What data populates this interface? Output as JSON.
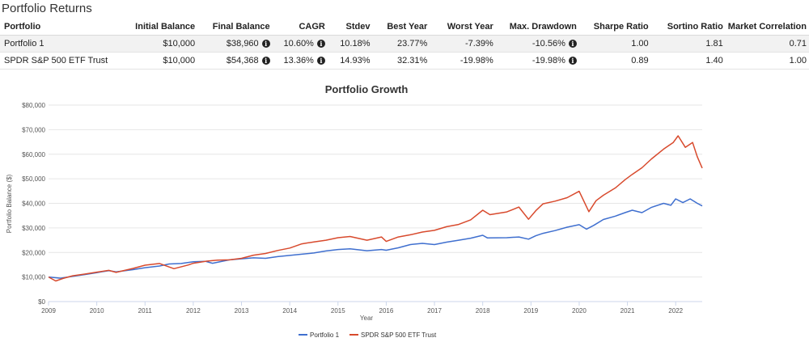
{
  "page": {
    "title": "Portfolio Returns"
  },
  "table": {
    "headers": [
      "Portfolio",
      "Initial Balance",
      "Final Balance",
      "CAGR",
      "Stdev",
      "Best Year",
      "Worst Year",
      "Max. Drawdown",
      "Sharpe Ratio",
      "Sortino Ratio",
      "Market Correlation"
    ],
    "rows": [
      {
        "portfolio": "Portfolio 1",
        "initial": "$10,000",
        "final": "$38,960",
        "cagr": "10.60%",
        "stdev": "10.18%",
        "best": "23.77%",
        "worst": "-7.39%",
        "drawdown": "-10.56%",
        "sharpe": "1.00",
        "sortino": "1.81",
        "correlation": "0.71"
      },
      {
        "portfolio": "SPDR S&P 500 ETF Trust",
        "initial": "$10,000",
        "final": "$54,368",
        "cagr": "13.36%",
        "stdev": "14.93%",
        "best": "32.31%",
        "worst": "-19.98%",
        "drawdown": "-19.98%",
        "sharpe": "0.89",
        "sortino": "1.40",
        "correlation": "1.00"
      }
    ],
    "info_icon": "info-icon"
  },
  "chart_data": {
    "type": "line",
    "title": "Portfolio Growth",
    "xlabel": "Year",
    "ylabel": "Portfolio Balance ($)",
    "xlim": [
      2009.0,
      2022.55
    ],
    "ylim": [
      0,
      80000
    ],
    "x_ticks": [
      "2009",
      "2010",
      "2011",
      "2012",
      "2013",
      "2014",
      "2015",
      "2016",
      "2017",
      "2018",
      "2019",
      "2020",
      "2021",
      "2022"
    ],
    "y_ticks": [
      "$0",
      "$10,000",
      "$20,000",
      "$30,000",
      "$40,000",
      "$50,000",
      "$60,000",
      "$70,000",
      "$80,000"
    ],
    "grid": true,
    "legend": "bottom",
    "series": [
      {
        "name": "Portfolio 1",
        "color": "#3f6fcf",
        "points": [
          [
            2009.0,
            10000
          ],
          [
            2009.25,
            9500
          ],
          [
            2009.5,
            10300
          ],
          [
            2009.75,
            11000
          ],
          [
            2010.0,
            11800
          ],
          [
            2010.25,
            12600
          ],
          [
            2010.4,
            12100
          ],
          [
            2010.75,
            13000
          ],
          [
            2011.0,
            13800
          ],
          [
            2011.3,
            14500
          ],
          [
            2011.5,
            15300
          ],
          [
            2011.75,
            15500
          ],
          [
            2012.0,
            16200
          ],
          [
            2012.25,
            16400
          ],
          [
            2012.4,
            15600
          ],
          [
            2012.75,
            17000
          ],
          [
            2013.0,
            17400
          ],
          [
            2013.25,
            17800
          ],
          [
            2013.5,
            17600
          ],
          [
            2013.75,
            18300
          ],
          [
            2014.0,
            18800
          ],
          [
            2014.25,
            19300
          ],
          [
            2014.5,
            19800
          ],
          [
            2014.75,
            20600
          ],
          [
            2015.0,
            21200
          ],
          [
            2015.25,
            21500
          ],
          [
            2015.6,
            20700
          ],
          [
            2015.9,
            21200
          ],
          [
            2016.0,
            20900
          ],
          [
            2016.25,
            21900
          ],
          [
            2016.5,
            23200
          ],
          [
            2016.75,
            23700
          ],
          [
            2017.0,
            23200
          ],
          [
            2017.25,
            24200
          ],
          [
            2017.5,
            25000
          ],
          [
            2017.75,
            25800
          ],
          [
            2018.0,
            27000
          ],
          [
            2018.1,
            25900
          ],
          [
            2018.5,
            26000
          ],
          [
            2018.75,
            26300
          ],
          [
            2018.95,
            25400
          ],
          [
            2019.1,
            26800
          ],
          [
            2019.25,
            27800
          ],
          [
            2019.5,
            28900
          ],
          [
            2019.75,
            30300
          ],
          [
            2020.0,
            31300
          ],
          [
            2020.15,
            29500
          ],
          [
            2020.3,
            31000
          ],
          [
            2020.5,
            33400
          ],
          [
            2020.75,
            34800
          ],
          [
            2020.95,
            36200
          ],
          [
            2021.1,
            37200
          ],
          [
            2021.3,
            36200
          ],
          [
            2021.5,
            38400
          ],
          [
            2021.75,
            40000
          ],
          [
            2021.9,
            39200
          ],
          [
            2022.0,
            41800
          ],
          [
            2022.15,
            40300
          ],
          [
            2022.3,
            41800
          ],
          [
            2022.45,
            40000
          ],
          [
            2022.55,
            38960
          ]
        ]
      },
      {
        "name": "SPDR S&P 500 ETF Trust",
        "color": "#d84a2d",
        "points": [
          [
            2009.0,
            10000
          ],
          [
            2009.15,
            8400
          ],
          [
            2009.3,
            9400
          ],
          [
            2009.5,
            10500
          ],
          [
            2009.75,
            11200
          ],
          [
            2010.0,
            12000
          ],
          [
            2010.25,
            12700
          ],
          [
            2010.4,
            11900
          ],
          [
            2010.75,
            13500
          ],
          [
            2011.0,
            14800
          ],
          [
            2011.3,
            15500
          ],
          [
            2011.6,
            13400
          ],
          [
            2011.9,
            14900
          ],
          [
            2012.0,
            15600
          ],
          [
            2012.25,
            16400
          ],
          [
            2012.5,
            16900
          ],
          [
            2012.75,
            17000
          ],
          [
            2013.0,
            17600
          ],
          [
            2013.25,
            18900
          ],
          [
            2013.5,
            19600
          ],
          [
            2013.75,
            20800
          ],
          [
            2014.0,
            21800
          ],
          [
            2014.25,
            23500
          ],
          [
            2014.5,
            24300
          ],
          [
            2014.75,
            25000
          ],
          [
            2015.0,
            26000
          ],
          [
            2015.25,
            26500
          ],
          [
            2015.6,
            25000
          ],
          [
            2015.9,
            26300
          ],
          [
            2016.0,
            24500
          ],
          [
            2016.25,
            26300
          ],
          [
            2016.5,
            27200
          ],
          [
            2016.75,
            28300
          ],
          [
            2017.0,
            29000
          ],
          [
            2017.25,
            30500
          ],
          [
            2017.5,
            31400
          ],
          [
            2017.75,
            33300
          ],
          [
            2018.0,
            37200
          ],
          [
            2018.15,
            35400
          ],
          [
            2018.5,
            36500
          ],
          [
            2018.75,
            38500
          ],
          [
            2018.95,
            33500
          ],
          [
            2019.1,
            37000
          ],
          [
            2019.25,
            39800
          ],
          [
            2019.5,
            40900
          ],
          [
            2019.75,
            42300
          ],
          [
            2020.0,
            44900
          ],
          [
            2020.2,
            36600
          ],
          [
            2020.35,
            41100
          ],
          [
            2020.5,
            43300
          ],
          [
            2020.75,
            46300
          ],
          [
            2020.95,
            49600
          ],
          [
            2021.1,
            51800
          ],
          [
            2021.3,
            54500
          ],
          [
            2021.5,
            58100
          ],
          [
            2021.75,
            62100
          ],
          [
            2021.95,
            64800
          ],
          [
            2022.05,
            67500
          ],
          [
            2022.2,
            62800
          ],
          [
            2022.35,
            64800
          ],
          [
            2022.45,
            58900
          ],
          [
            2022.55,
            54368
          ]
        ]
      }
    ]
  }
}
